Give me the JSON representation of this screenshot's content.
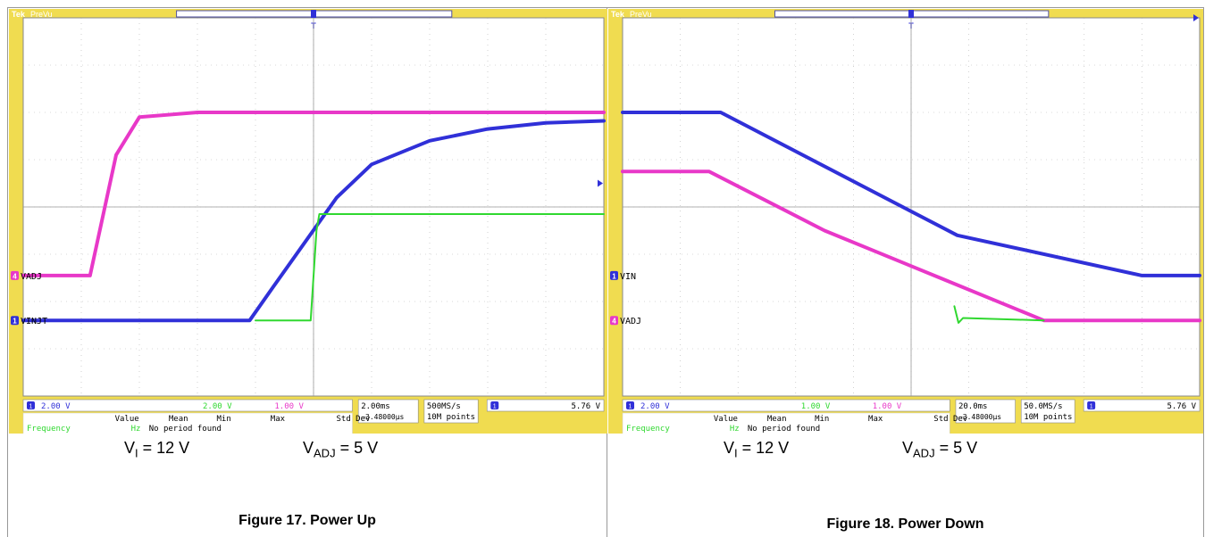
{
  "colors": {
    "ch1": "#3030d8",
    "ch3": "#30d830",
    "ch4": "#e838c8",
    "grid": "#b4b4b4",
    "bezel": "#f0dc50"
  },
  "panels": [
    {
      "header": "PreVu",
      "caption_vi": {
        "main": "V",
        "sub": "I",
        "rest": " = 12 V"
      },
      "caption_vadj": {
        "main": "V",
        "sub": "ADJ",
        "rest": " = 5 V"
      },
      "figure_title": "Figure 17. Power Up",
      "scope": {
        "ch_labels": [
          {
            "num": "4",
            "text": "VADJ",
            "color": "ch4",
            "div": 5.45
          },
          {
            "num": "1",
            "text": "VINJT",
            "color": "ch1",
            "div": 6.4
          }
        ],
        "status": {
          "ch1": "2.00 V",
          "ch3": "2.00 V",
          "ch4": "1.00 V",
          "timebase": "2.00ms",
          "delay": "−3.48000µs",
          "rate": "500MS/s",
          "points": "10M points",
          "trig_ch": "1",
          "trig_level": "5.76 V"
        },
        "meas_headers": [
          "Value",
          "Mean",
          "Min",
          "Max",
          "Std Dev"
        ],
        "meas_label": "Frequency",
        "meas_value": "Hz",
        "meas_note": "No period found"
      },
      "chart_data": {
        "type": "line",
        "grid": true,
        "xlim": [
          0,
          10
        ],
        "ylim": [
          0,
          8
        ],
        "series": [
          {
            "color": "ch4",
            "width": 4,
            "points": [
              [
                0,
                5.45
              ],
              [
                1.15,
                5.45
              ],
              [
                1.6,
                2.9
              ],
              [
                2.0,
                2.1
              ],
              [
                3.0,
                2.0
              ],
              [
                10,
                2.0
              ]
            ]
          },
          {
            "color": "ch1",
            "width": 4,
            "points": [
              [
                0,
                6.4
              ],
              [
                3.9,
                6.4
              ],
              [
                4.3,
                5.7
              ],
              [
                5.4,
                3.8
              ],
              [
                6.0,
                3.1
              ],
              [
                7.0,
                2.6
              ],
              [
                8.0,
                2.35
              ],
              [
                9.0,
                2.22
              ],
              [
                10,
                2.18
              ]
            ]
          },
          {
            "color": "ch3",
            "width": 2,
            "points": [
              [
                4.0,
                6.4
              ],
              [
                4.95,
                6.4
              ],
              [
                5.05,
                4.5
              ],
              [
                5.1,
                4.15
              ],
              [
                10,
                4.15
              ]
            ]
          }
        ]
      }
    },
    {
      "header": "PreVu",
      "caption_vi": {
        "main": "V",
        "sub": "I",
        "rest": " = 12 V"
      },
      "caption_vadj": {
        "main": "V",
        "sub": "ADJ",
        "rest": " = 5 V"
      },
      "figure_title": "Figure 18. Power Down",
      "scope": {
        "ch_labels": [
          {
            "num": "1",
            "text": "VIN",
            "color": "ch1",
            "div": 5.45
          },
          {
            "num": "4",
            "text": "VADJ",
            "color": "ch4",
            "div": 6.4
          }
        ],
        "status": {
          "ch1": "2.00 V",
          "ch3": "1.00 V",
          "ch4": "1.00 V",
          "timebase": "20.0ms",
          "delay": "−3.48000µs",
          "rate": "50.0MS/s",
          "points": "10M points",
          "trig_ch": "1",
          "trig_level": "5.76 V"
        },
        "meas_headers": [
          "Value",
          "Mean",
          "Min",
          "Max",
          "Std Dev"
        ],
        "meas_label": "Frequency",
        "meas_value": "Hz",
        "meas_note": "No period found"
      },
      "chart_data": {
        "type": "line",
        "grid": true,
        "xlim": [
          0,
          10
        ],
        "ylim": [
          0,
          8
        ],
        "series": [
          {
            "color": "ch1",
            "width": 4,
            "points": [
              [
                0,
                2.0
              ],
              [
                1.7,
                2.0
              ],
              [
                5.8,
                4.6
              ],
              [
                9.0,
                5.45
              ],
              [
                10,
                5.45
              ]
            ]
          },
          {
            "color": "ch4",
            "width": 4,
            "points": [
              [
                0,
                3.25
              ],
              [
                1.5,
                3.25
              ],
              [
                3.5,
                4.5
              ],
              [
                5.5,
                5.5
              ],
              [
                7.3,
                6.4
              ],
              [
                10,
                6.4
              ]
            ]
          },
          {
            "color": "ch3",
            "width": 2,
            "points": [
              [
                5.75,
                6.1
              ],
              [
                5.82,
                6.45
              ],
              [
                5.9,
                6.35
              ],
              [
                7.3,
                6.4
              ]
            ]
          }
        ]
      }
    }
  ]
}
